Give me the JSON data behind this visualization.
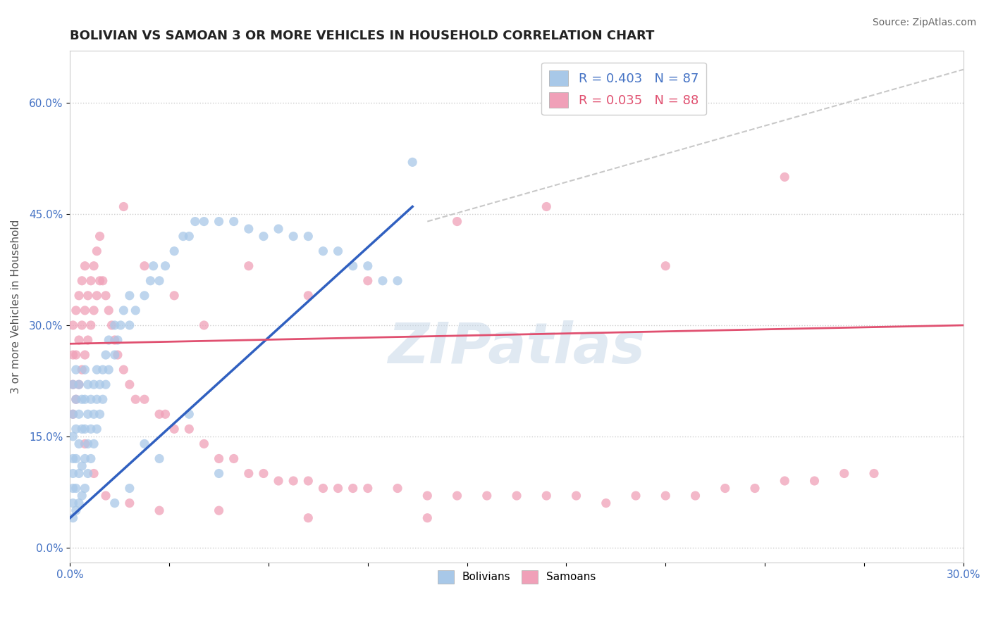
{
  "title": "BOLIVIAN VS SAMOAN 3 OR MORE VEHICLES IN HOUSEHOLD CORRELATION CHART",
  "source": "Source: ZipAtlas.com",
  "ylabel": "3 or more Vehicles in Household",
  "xlim": [
    0.0,
    0.3
  ],
  "ylim": [
    -0.02,
    0.67
  ],
  "ytick_vals": [
    0.0,
    0.15,
    0.3,
    0.45,
    0.6
  ],
  "ytick_labels": [
    "0.0%",
    "15.0%",
    "30.0%",
    "45.0%",
    "60.0%"
  ],
  "xtick_vals": [
    0.0,
    0.033333,
    0.066667,
    0.1,
    0.133333,
    0.166667,
    0.2,
    0.233333,
    0.266667,
    0.3
  ],
  "blue_color": "#A8C8E8",
  "pink_color": "#F0A0B8",
  "blue_line_color": "#3060C0",
  "pink_line_color": "#E05070",
  "ref_line_color": "#BBBBBB",
  "blue_R": 0.403,
  "blue_N": 87,
  "pink_R": 0.035,
  "pink_N": 88,
  "blue_trend_x": [
    0.0,
    0.115
  ],
  "blue_trend_y": [
    0.04,
    0.46
  ],
  "pink_trend_x": [
    0.0,
    0.3
  ],
  "pink_trend_y": [
    0.275,
    0.3
  ],
  "ref_line_x": [
    0.12,
    0.3
  ],
  "ref_line_y": [
    0.44,
    0.645
  ],
  "watermark": "ZIPatlas",
  "title_fontsize": 13,
  "label_fontsize": 11,
  "tick_fontsize": 11,
  "legend_fontsize": 13,
  "blue_scatter_x": [
    0.001,
    0.001,
    0.001,
    0.001,
    0.001,
    0.001,
    0.001,
    0.001,
    0.002,
    0.002,
    0.002,
    0.002,
    0.002,
    0.002,
    0.003,
    0.003,
    0.003,
    0.003,
    0.003,
    0.004,
    0.004,
    0.004,
    0.004,
    0.005,
    0.005,
    0.005,
    0.005,
    0.005,
    0.006,
    0.006,
    0.006,
    0.006,
    0.007,
    0.007,
    0.007,
    0.008,
    0.008,
    0.008,
    0.009,
    0.009,
    0.009,
    0.01,
    0.01,
    0.011,
    0.011,
    0.012,
    0.012,
    0.013,
    0.013,
    0.015,
    0.015,
    0.016,
    0.017,
    0.018,
    0.02,
    0.02,
    0.022,
    0.025,
    0.027,
    0.028,
    0.03,
    0.032,
    0.035,
    0.038,
    0.04,
    0.042,
    0.045,
    0.05,
    0.055,
    0.06,
    0.065,
    0.07,
    0.075,
    0.08,
    0.085,
    0.09,
    0.095,
    0.1,
    0.105,
    0.11,
    0.115,
    0.025,
    0.04,
    0.05,
    0.02,
    0.03,
    0.015
  ],
  "blue_scatter_y": [
    0.04,
    0.06,
    0.08,
    0.1,
    0.12,
    0.15,
    0.18,
    0.22,
    0.05,
    0.08,
    0.12,
    0.16,
    0.2,
    0.24,
    0.06,
    0.1,
    0.14,
    0.18,
    0.22,
    0.07,
    0.11,
    0.16,
    0.2,
    0.08,
    0.12,
    0.16,
    0.2,
    0.24,
    0.1,
    0.14,
    0.18,
    0.22,
    0.12,
    0.16,
    0.2,
    0.14,
    0.18,
    0.22,
    0.16,
    0.2,
    0.24,
    0.18,
    0.22,
    0.2,
    0.24,
    0.22,
    0.26,
    0.24,
    0.28,
    0.26,
    0.3,
    0.28,
    0.3,
    0.32,
    0.3,
    0.34,
    0.32,
    0.34,
    0.36,
    0.38,
    0.36,
    0.38,
    0.4,
    0.42,
    0.42,
    0.44,
    0.44,
    0.44,
    0.44,
    0.43,
    0.42,
    0.43,
    0.42,
    0.42,
    0.4,
    0.4,
    0.38,
    0.38,
    0.36,
    0.36,
    0.52,
    0.14,
    0.18,
    0.1,
    0.08,
    0.12,
    0.06
  ],
  "pink_scatter_x": [
    0.001,
    0.001,
    0.001,
    0.001,
    0.002,
    0.002,
    0.002,
    0.003,
    0.003,
    0.003,
    0.004,
    0.004,
    0.004,
    0.005,
    0.005,
    0.005,
    0.006,
    0.006,
    0.007,
    0.007,
    0.008,
    0.008,
    0.009,
    0.009,
    0.01,
    0.01,
    0.011,
    0.012,
    0.013,
    0.014,
    0.015,
    0.016,
    0.018,
    0.02,
    0.022,
    0.025,
    0.03,
    0.032,
    0.035,
    0.04,
    0.045,
    0.05,
    0.055,
    0.06,
    0.065,
    0.07,
    0.075,
    0.08,
    0.085,
    0.09,
    0.095,
    0.1,
    0.11,
    0.12,
    0.13,
    0.14,
    0.15,
    0.16,
    0.17,
    0.18,
    0.19,
    0.2,
    0.21,
    0.22,
    0.23,
    0.24,
    0.25,
    0.26,
    0.27,
    0.018,
    0.025,
    0.035,
    0.045,
    0.06,
    0.08,
    0.1,
    0.13,
    0.16,
    0.2,
    0.24,
    0.005,
    0.008,
    0.012,
    0.02,
    0.03,
    0.05,
    0.08,
    0.12
  ],
  "pink_scatter_y": [
    0.18,
    0.22,
    0.26,
    0.3,
    0.2,
    0.26,
    0.32,
    0.22,
    0.28,
    0.34,
    0.24,
    0.3,
    0.36,
    0.26,
    0.32,
    0.38,
    0.28,
    0.34,
    0.3,
    0.36,
    0.32,
    0.38,
    0.34,
    0.4,
    0.36,
    0.42,
    0.36,
    0.34,
    0.32,
    0.3,
    0.28,
    0.26,
    0.24,
    0.22,
    0.2,
    0.2,
    0.18,
    0.18,
    0.16,
    0.16,
    0.14,
    0.12,
    0.12,
    0.1,
    0.1,
    0.09,
    0.09,
    0.09,
    0.08,
    0.08,
    0.08,
    0.08,
    0.08,
    0.07,
    0.07,
    0.07,
    0.07,
    0.07,
    0.07,
    0.06,
    0.07,
    0.07,
    0.07,
    0.08,
    0.08,
    0.09,
    0.09,
    0.1,
    0.1,
    0.46,
    0.38,
    0.34,
    0.3,
    0.38,
    0.34,
    0.36,
    0.44,
    0.46,
    0.38,
    0.5,
    0.14,
    0.1,
    0.07,
    0.06,
    0.05,
    0.05,
    0.04,
    0.04
  ]
}
